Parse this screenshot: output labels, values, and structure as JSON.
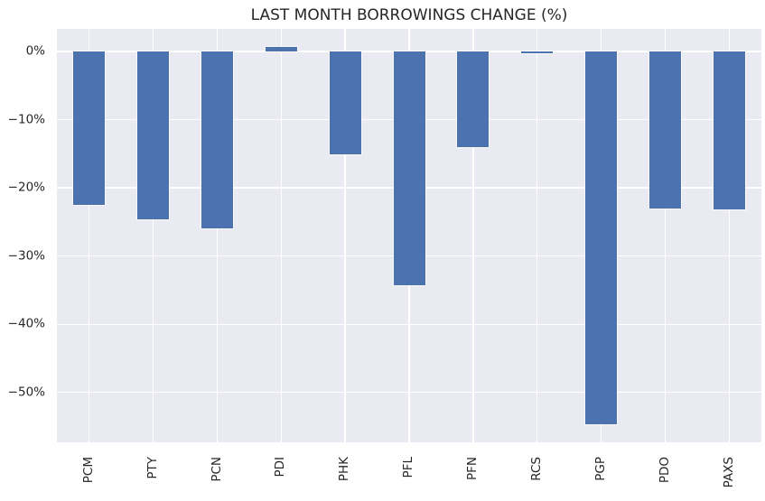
{
  "chart_data": {
    "type": "bar",
    "title": "LAST MONTH BORROWINGS CHANGE (%)",
    "categories": [
      "PCM",
      "PTY",
      "PCN",
      "PDI",
      "PHK",
      "PFL",
      "PFN",
      "RCS",
      "PGP",
      "PDO",
      "PAXS"
    ],
    "values": [
      -22.5,
      -24.6,
      -26.0,
      0.6,
      -15.1,
      -34.3,
      -14.0,
      -0.3,
      -54.7,
      -23.0,
      -23.2
    ],
    "unit": "%",
    "xlabel": "",
    "ylabel": "",
    "ylim": [
      -57.3,
      3.3
    ],
    "yticks": [
      {
        "value": 0,
        "label": "0%"
      },
      {
        "value": -10,
        "label": "−10%"
      },
      {
        "value": -20,
        "label": "−20%"
      },
      {
        "value": -30,
        "label": "−30%"
      },
      {
        "value": -40,
        "label": "−40%"
      },
      {
        "value": -50,
        "label": "−50%"
      }
    ],
    "grid": true,
    "legend": false,
    "bar_width_fraction": 0.5,
    "colors": {
      "bar": "#4C72B0",
      "plot_background": "#EAEAF2",
      "grid": "#FFFFFF",
      "text": "#262626",
      "figure_background": "#FFFFFF"
    }
  }
}
